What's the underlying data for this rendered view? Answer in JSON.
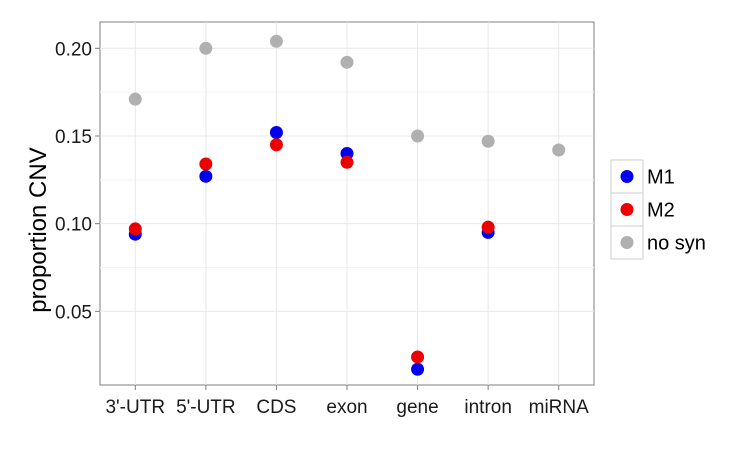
{
  "chart_data": {
    "type": "scatter",
    "title": "",
    "xlabel": "",
    "ylabel": "proportion CNV",
    "categories": [
      "3'-UTR",
      "5'-UTR",
      "CDS",
      "exon",
      "gene",
      "intron",
      "miRNA"
    ],
    "ylim": [
      0.008,
      0.215
    ],
    "yticks": [
      0.05,
      0.1,
      0.15,
      0.2
    ],
    "ytick_labels": [
      "0.05",
      "0.10",
      "0.15",
      "0.20"
    ],
    "grid": true,
    "legend_position": "right",
    "series": [
      {
        "name": "M1",
        "color": "#0000ee",
        "values": [
          0.094,
          0.127,
          0.152,
          0.14,
          0.017,
          0.095,
          null
        ]
      },
      {
        "name": "M2",
        "color": "#ee0000",
        "values": [
          0.097,
          0.134,
          0.145,
          0.135,
          0.024,
          0.098,
          null
        ]
      },
      {
        "name": "no syn",
        "color": "#b0b0b0",
        "values": [
          0.171,
          0.2,
          0.204,
          0.192,
          0.15,
          0.147,
          0.142
        ]
      }
    ]
  }
}
